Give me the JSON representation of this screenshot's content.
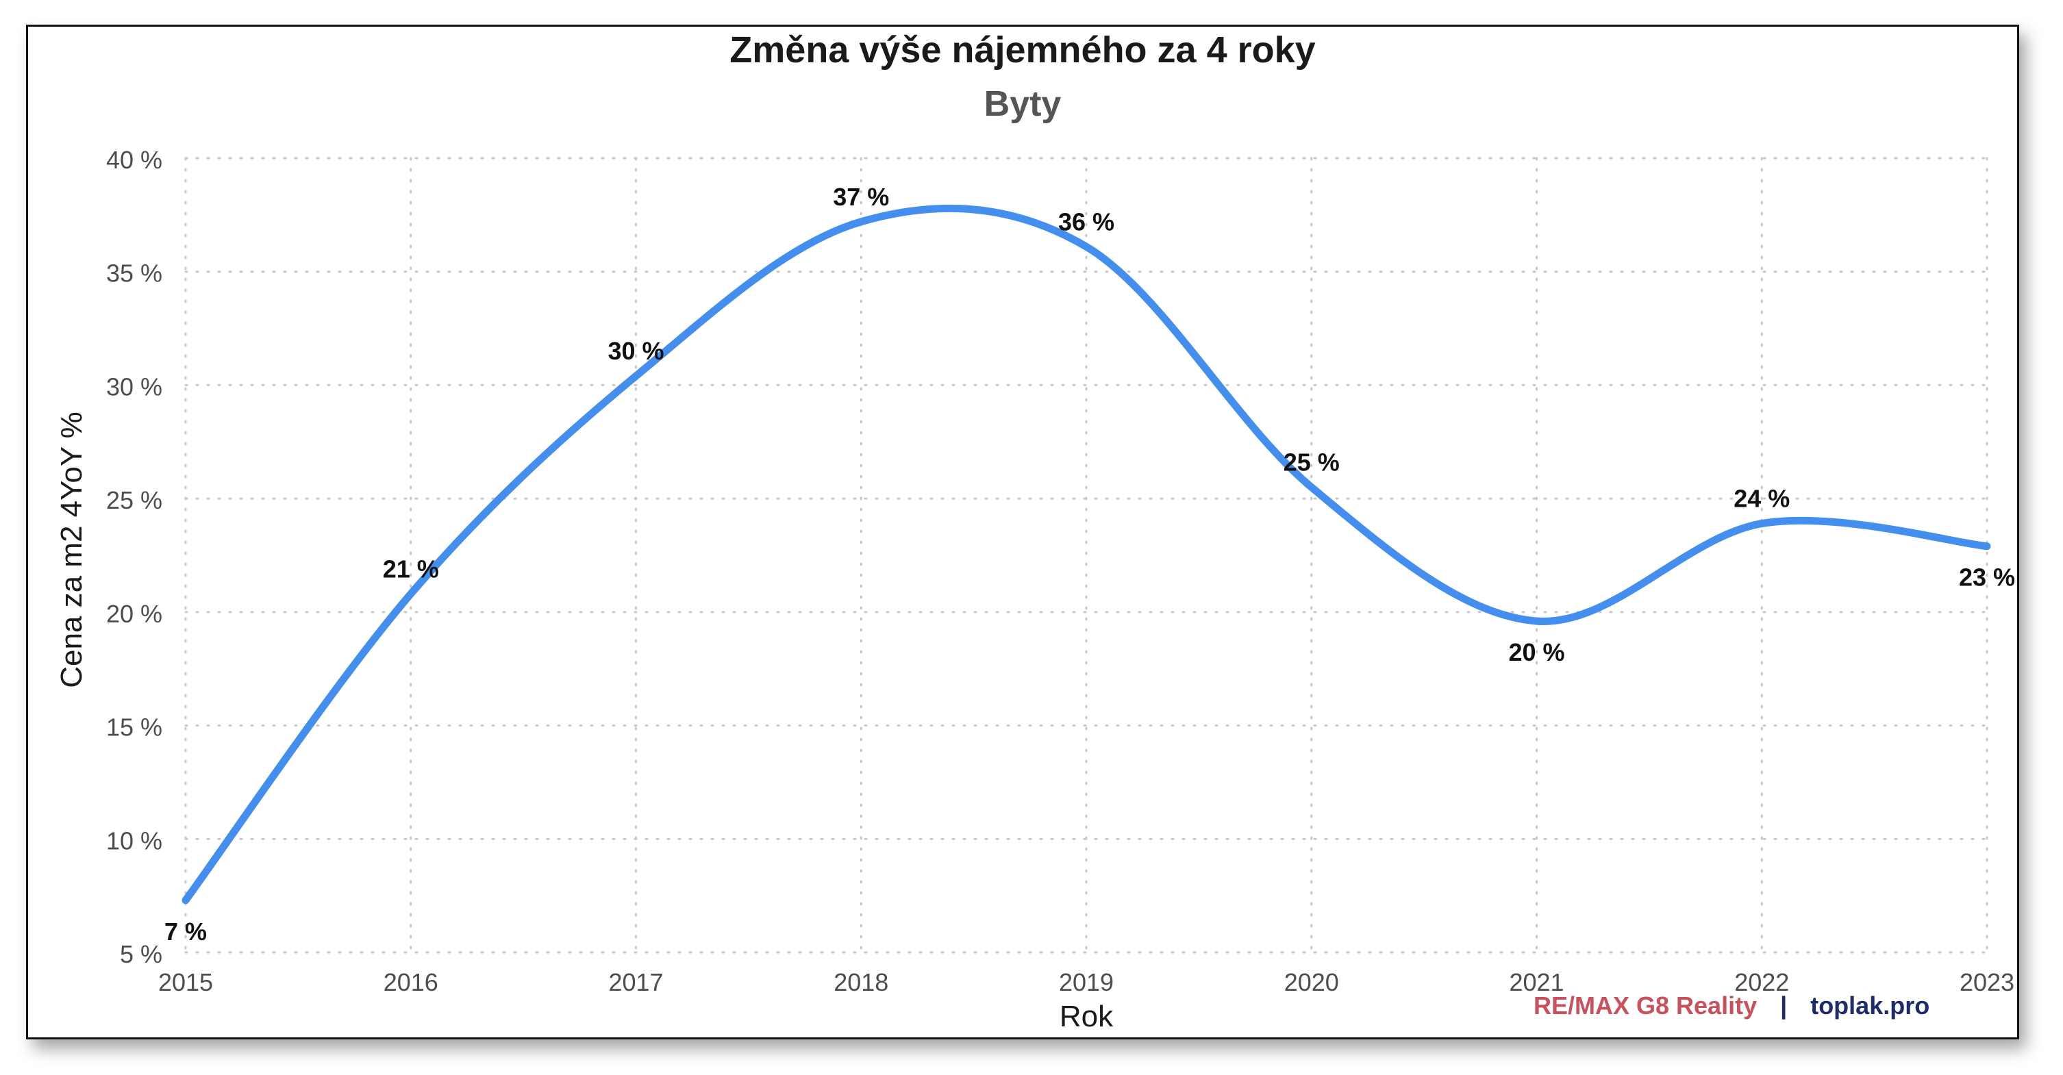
{
  "chart_data": {
    "type": "line",
    "title": "Změna výše nájemného za 4 roky",
    "subtitle": "Byty",
    "xlabel": "Rok",
    "ylabel": "Cena za m2 4YoY %",
    "x": [
      2015,
      2016,
      2017,
      2018,
      2019,
      2020,
      2021,
      2022,
      2023
    ],
    "x_tick_labels": [
      "2015",
      "2016",
      "2017",
      "2018",
      "2019",
      "2020",
      "2021",
      "2022",
      "2023"
    ],
    "series": [
      {
        "values": [
          7.3,
          20.8,
          30.4,
          37.2,
          36.1,
          25.5,
          19.6,
          23.9,
          22.9
        ],
        "labels": [
          "7 %",
          "21 %",
          "30 %",
          "37 %",
          "36 %",
          "25 %",
          "20 %",
          "24 %",
          "23 %"
        ],
        "color": "#448ef0"
      }
    ],
    "ylim": [
      5,
      40
    ],
    "y_ticks": [
      5,
      10,
      15,
      20,
      25,
      30,
      35,
      40
    ],
    "y_tick_labels": [
      "5 %",
      "10 %",
      "15 %",
      "20 %",
      "25 %",
      "30 %",
      "35 %",
      "40 %"
    ],
    "grid": true,
    "legend": "none"
  },
  "branding": {
    "part1": "RE/MAX G8 Reality",
    "separator": "|",
    "part2": "toplak.pro"
  }
}
